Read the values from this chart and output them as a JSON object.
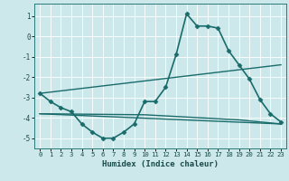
{
  "background_color": "#cce8ea",
  "grid_color": "#ffffff",
  "line_color": "#1a6b6b",
  "xlabel": "Humidex (Indice chaleur)",
  "xlim": [
    -0.5,
    23.5
  ],
  "ylim": [
    -5.5,
    1.6
  ],
  "yticks": [
    1,
    0,
    -1,
    -2,
    -3,
    -4,
    -5
  ],
  "xticks": [
    0,
    1,
    2,
    3,
    4,
    5,
    6,
    7,
    8,
    9,
    10,
    11,
    12,
    13,
    14,
    15,
    16,
    17,
    18,
    19,
    20,
    21,
    22,
    23
  ],
  "series": [
    {
      "x": [
        0,
        1,
        2,
        3,
        4,
        5,
        6,
        7,
        8,
        9,
        10,
        11,
        12,
        13,
        14,
        15,
        16,
        17,
        18,
        19,
        20,
        21,
        22,
        23
      ],
      "y": [
        -2.8,
        -3.2,
        -3.5,
        -3.7,
        -4.3,
        -4.7,
        -5.0,
        -5.0,
        -4.7,
        -4.3,
        -3.2,
        -3.2,
        -2.5,
        -0.9,
        1.1,
        0.5,
        0.5,
        0.4,
        -0.7,
        -1.4,
        -2.1,
        -3.1,
        -3.8,
        -4.2
      ],
      "marker": "D",
      "markersize": 2.5,
      "linewidth": 1.2
    },
    {
      "x": [
        0,
        23
      ],
      "y": [
        -2.8,
        -1.4
      ],
      "marker": null,
      "linewidth": 1.0
    },
    {
      "x": [
        0,
        23
      ],
      "y": [
        -3.8,
        -4.3
      ],
      "marker": null,
      "linewidth": 1.0
    },
    {
      "x": [
        0,
        10,
        19,
        23
      ],
      "y": [
        -3.8,
        -3.85,
        -4.1,
        -4.3
      ],
      "marker": null,
      "linewidth": 1.0
    }
  ]
}
